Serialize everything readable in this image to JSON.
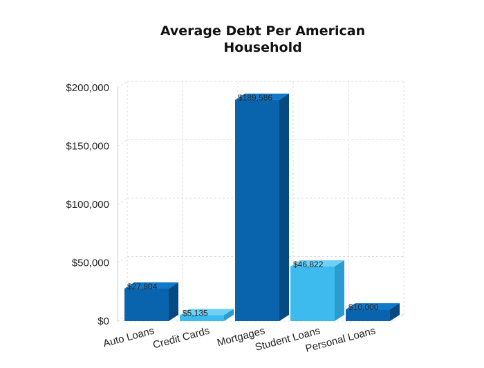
{
  "chart_data": {
    "type": "bar",
    "title_lines": [
      "Average Debt Per American",
      "Household"
    ],
    "categories": [
      "Auto Loans",
      "Credit Cards",
      "Mortgages",
      "Student Loans",
      "Personal Loans"
    ],
    "values": [
      27804,
      5135,
      189586,
      46822,
      10000
    ],
    "data_labels": [
      "$27,804",
      "$5,135",
      "$189,586",
      "$46,822",
      "$10,000"
    ],
    "y_ticks": [
      {
        "value": 0,
        "label": "$0"
      },
      {
        "value": 50000,
        "label": "$50,000"
      },
      {
        "value": 100000,
        "label": "$100,000"
      },
      {
        "value": 150000,
        "label": "$150,000"
      },
      {
        "value": 200000,
        "label": "$200,000"
      }
    ],
    "ylim": [
      0,
      200000
    ],
    "grid": true,
    "style": "3d",
    "colors": [
      {
        "front": "#0a63ad",
        "side": "#064a82",
        "top": "#1279c8"
      },
      {
        "front": "#3dbbee",
        "side": "#2a9ccf",
        "top": "#6fd0f5"
      },
      {
        "front": "#0a63ad",
        "side": "#064a82",
        "top": "#1279c8"
      },
      {
        "front": "#3dbbee",
        "side": "#2a9ccf",
        "top": "#6fd0f5"
      },
      {
        "front": "#0a63ad",
        "side": "#064a82",
        "top": "#1279c8"
      }
    ]
  }
}
